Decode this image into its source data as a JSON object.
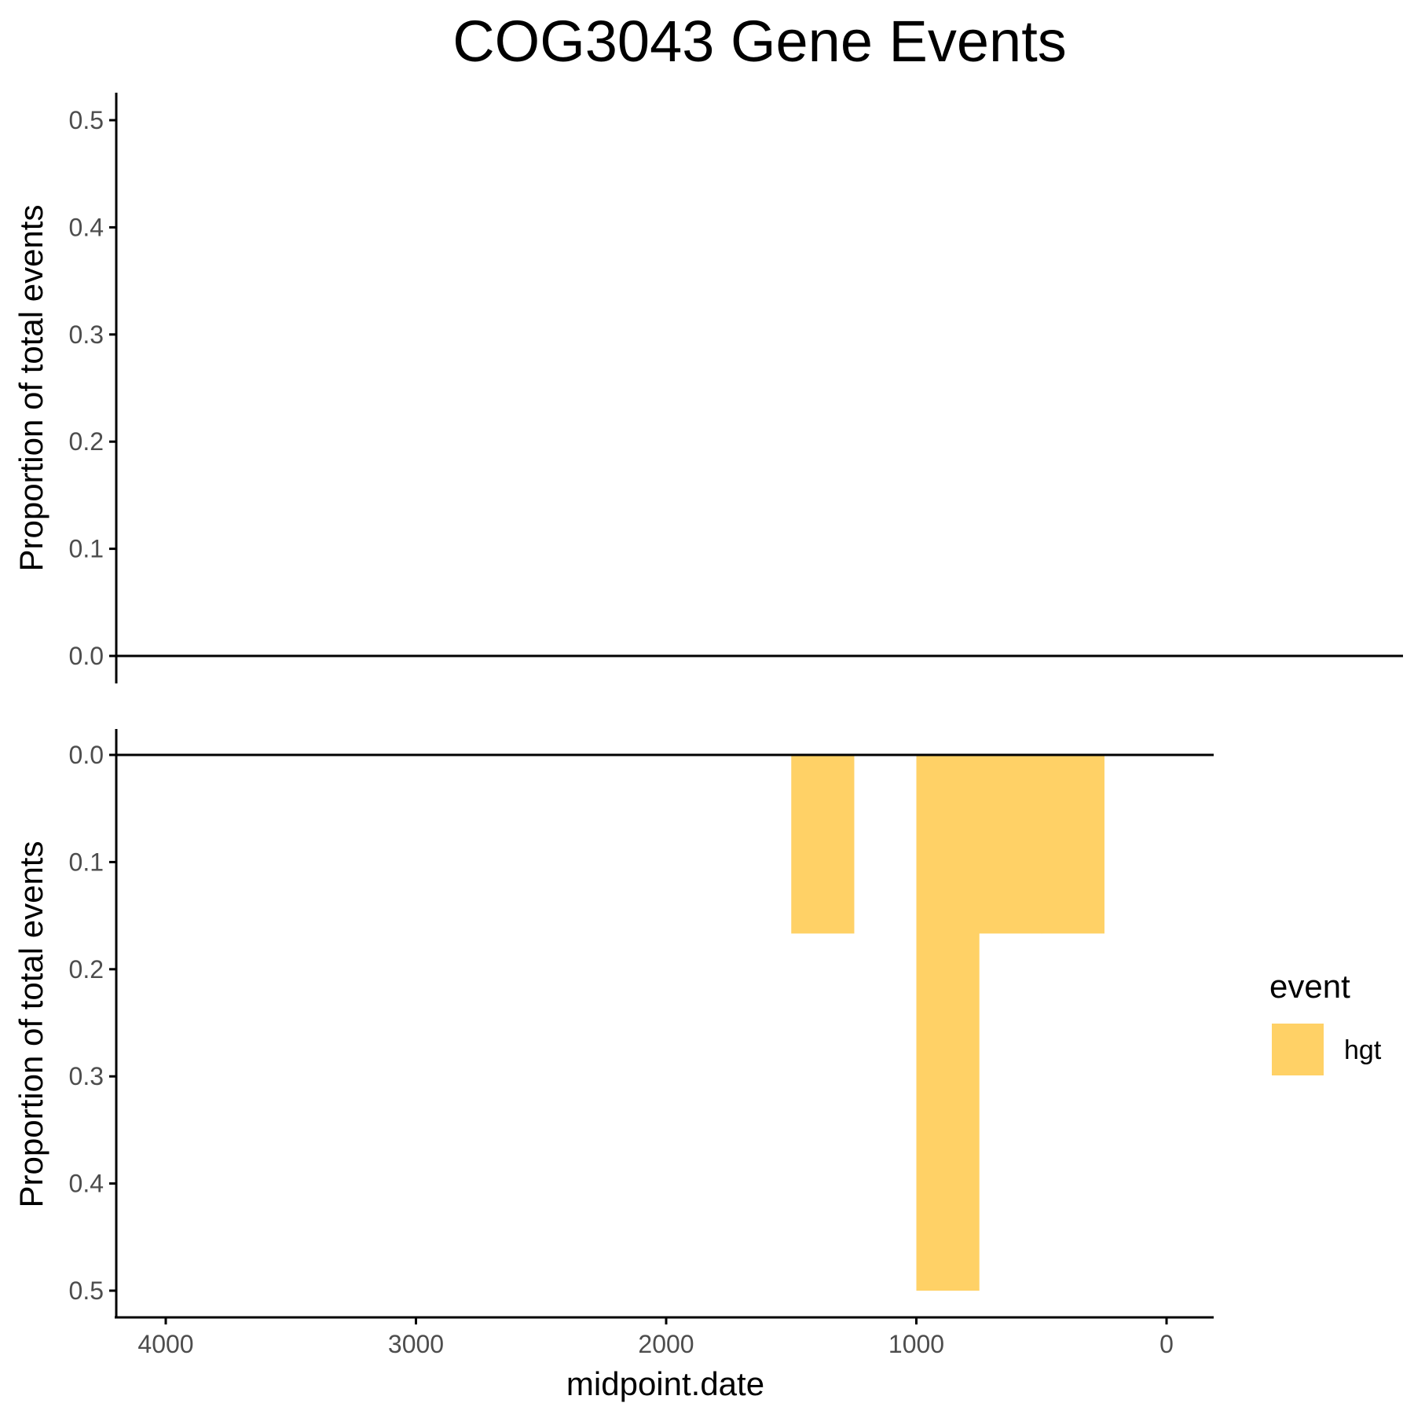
{
  "chart_data": {
    "type": "bar",
    "title": "COG3043 Gene Events",
    "xlabel": "midpoint.date",
    "ylabel": "Proportion of total events",
    "x_reversed": true,
    "xlim": [
      4200,
      -200
    ],
    "x_ticks": [
      4000,
      3000,
      2000,
      1000,
      0
    ],
    "x_tick_labels": [
      "4000",
      "3000",
      "2000",
      "1000",
      "0"
    ],
    "legend": {
      "title": "event",
      "position": "right",
      "entries": [
        {
          "label": "hgt",
          "color": "#ffd166"
        }
      ]
    },
    "grid": false,
    "panels": [
      {
        "id": "top",
        "ylabel": "Proportion of total events",
        "ylim": [
          0,
          0.5
        ],
        "y_direction": "up",
        "y_ticks": [
          0.0,
          0.1,
          0.2,
          0.3,
          0.4,
          0.5
        ],
        "y_tick_labels": [
          "0.0",
          "0.1",
          "0.2",
          "0.3",
          "0.4",
          "0.5"
        ],
        "series": []
      },
      {
        "id": "bottom",
        "ylabel": "Proportion of total events",
        "ylim": [
          0,
          0.5
        ],
        "y_direction": "down",
        "y_ticks": [
          0.0,
          0.1,
          0.2,
          0.3,
          0.4,
          0.5
        ],
        "y_tick_labels": [
          "0.0",
          "0.1",
          "0.2",
          "0.3",
          "0.4",
          "0.5"
        ],
        "series": [
          {
            "name": "hgt",
            "color": "#ffd166",
            "bars": [
              {
                "x_start": 1500,
                "x_end": 1250,
                "value": 0.1667
              },
              {
                "x_start": 1000,
                "x_end": 750,
                "value": 0.5
              },
              {
                "x_start": 750,
                "x_end": 500,
                "value": 0.1667
              },
              {
                "x_start": 500,
                "x_end": 250,
                "value": 0.1667
              }
            ]
          }
        ]
      }
    ]
  }
}
